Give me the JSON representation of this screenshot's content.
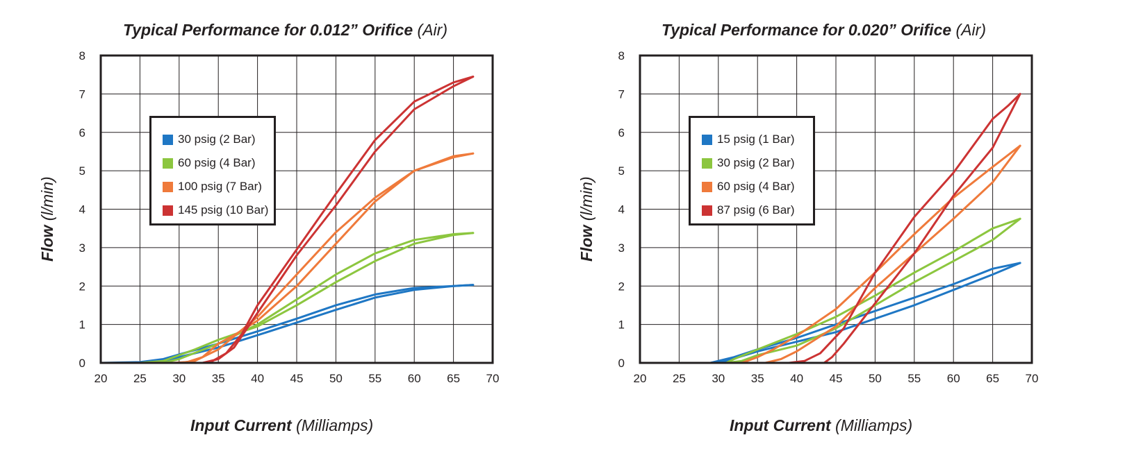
{
  "chart_data": [
    {
      "type": "line",
      "title_main": "Typical Performance for 0.012” Orifice",
      "title_sub": "(Air)",
      "xlabel_main": "Input Current",
      "xlabel_sub": "(Milliamps)",
      "ylabel_main": "Flow",
      "ylabel_sub": "(l/min)",
      "xlim": [
        20,
        70
      ],
      "ylim": [
        0,
        8
      ],
      "xticks": [
        "20",
        "25",
        "30",
        "35",
        "40",
        "45",
        "50",
        "55",
        "60",
        "65",
        "70"
      ],
      "yticks": [
        "0",
        "1",
        "2",
        "3",
        "4",
        "5",
        "6",
        "7",
        "8"
      ],
      "grid": true,
      "legend_position": "upper-left",
      "series": [
        {
          "name": "30 psig (2 Bar)",
          "color": "#1f77c4",
          "up": [
            [
              20,
              0
            ],
            [
              25,
              0
            ],
            [
              28,
              0.05
            ],
            [
              30,
              0.15
            ],
            [
              35,
              0.4
            ],
            [
              40,
              0.72
            ],
            [
              45,
              1.05
            ],
            [
              50,
              1.38
            ],
            [
              55,
              1.7
            ],
            [
              60,
              1.9
            ],
            [
              65,
              2.0
            ],
            [
              67.5,
              2.03
            ]
          ],
          "down": [
            [
              67.5,
              2.03
            ],
            [
              65,
              2.0
            ],
            [
              60,
              1.95
            ],
            [
              55,
              1.78
            ],
            [
              50,
              1.5
            ],
            [
              45,
              1.15
            ],
            [
              40,
              0.82
            ],
            [
              35,
              0.5
            ],
            [
              30,
              0.22
            ],
            [
              28,
              0.1
            ],
            [
              25,
              0.02
            ],
            [
              20,
              0
            ]
          ]
        },
        {
          "name": "60 psig (4 Bar)",
          "color": "#8cc63f",
          "up": [
            [
              20,
              0
            ],
            [
              28,
              0
            ],
            [
              30,
              0.1
            ],
            [
              35,
              0.5
            ],
            [
              40,
              1.0
            ],
            [
              45,
              1.65
            ],
            [
              50,
              2.3
            ],
            [
              55,
              2.85
            ],
            [
              60,
              3.2
            ],
            [
              65,
              3.35
            ],
            [
              67.5,
              3.38
            ]
          ],
          "down": [
            [
              67.5,
              3.38
            ],
            [
              65,
              3.33
            ],
            [
              60,
              3.1
            ],
            [
              55,
              2.65
            ],
            [
              50,
              2.1
            ],
            [
              45,
              1.5
            ],
            [
              40,
              0.95
            ],
            [
              35,
              0.6
            ],
            [
              32,
              0.35
            ],
            [
              30,
              0.2
            ],
            [
              28,
              0.05
            ],
            [
              25,
              0
            ],
            [
              20,
              0
            ]
          ]
        },
        {
          "name": "100 psig (7 Bar)",
          "color": "#ef7a3b",
          "up": [
            [
              20,
              0
            ],
            [
              30,
              0
            ],
            [
              32,
              0.05
            ],
            [
              35,
              0.35
            ],
            [
              40,
              1.2
            ],
            [
              45,
              2.3
            ],
            [
              50,
              3.4
            ],
            [
              55,
              4.3
            ],
            [
              60,
              5.0
            ],
            [
              65,
              5.35
            ],
            [
              67.5,
              5.45
            ]
          ],
          "down": [
            [
              67.5,
              5.45
            ],
            [
              65,
              5.38
            ],
            [
              60,
              5.0
            ],
            [
              55,
              4.2
            ],
            [
              50,
              3.1
            ],
            [
              45,
              2.0
            ],
            [
              40,
              1.1
            ],
            [
              37,
              0.72
            ],
            [
              35,
              0.5
            ],
            [
              33,
              0.15
            ],
            [
              31,
              0.02
            ],
            [
              29,
              0
            ],
            [
              20,
              0
            ]
          ]
        },
        {
          "name": "145 psig (10 Bar)",
          "color": "#cc3333",
          "up": [
            [
              20,
              0
            ],
            [
              33,
              0
            ],
            [
              35,
              0.1
            ],
            [
              37,
              0.4
            ],
            [
              40,
              1.3
            ],
            [
              45,
              2.8
            ],
            [
              50,
              4.1
            ],
            [
              55,
              5.5
            ],
            [
              60,
              6.6
            ],
            [
              65,
              7.2
            ],
            [
              67.5,
              7.45
            ]
          ],
          "down": [
            [
              67.5,
              7.45
            ],
            [
              65,
              7.3
            ],
            [
              60,
              6.8
            ],
            [
              55,
              5.8
            ],
            [
              50,
              4.4
            ],
            [
              45,
              2.95
            ],
            [
              40,
              1.5
            ],
            [
              38,
              0.75
            ],
            [
              36,
              0.25
            ],
            [
              34,
              0.02
            ],
            [
              33,
              0
            ],
            [
              20,
              0
            ]
          ]
        }
      ]
    },
    {
      "type": "line",
      "title_main": "Typical Performance for 0.020” Orifice",
      "title_sub": "(Air)",
      "xlabel_main": "Input Current",
      "xlabel_sub": "(Milliamps)",
      "ylabel_main": "Flow",
      "ylabel_sub": "(l/min)",
      "xlim": [
        20,
        70
      ],
      "ylim": [
        0,
        8
      ],
      "xticks": [
        "20",
        "25",
        "30",
        "35",
        "40",
        "45",
        "50",
        "55",
        "60",
        "65",
        "70"
      ],
      "yticks": [
        "0",
        "1",
        "2",
        "3",
        "4",
        "5",
        "6",
        "7",
        "8"
      ],
      "grid": true,
      "legend_position": "upper-left",
      "series": [
        {
          "name": "15 psig (1 Bar)",
          "color": "#1f77c4",
          "up": [
            [
              20,
              0
            ],
            [
              29,
              0
            ],
            [
              31,
              0.05
            ],
            [
              35,
              0.3
            ],
            [
              40,
              0.55
            ],
            [
              45,
              0.8
            ],
            [
              50,
              1.15
            ],
            [
              55,
              1.5
            ],
            [
              60,
              1.9
            ],
            [
              65,
              2.3
            ],
            [
              68.5,
              2.6
            ]
          ],
          "down": [
            [
              68.5,
              2.6
            ],
            [
              65,
              2.45
            ],
            [
              60,
              2.05
            ],
            [
              55,
              1.7
            ],
            [
              50,
              1.35
            ],
            [
              45,
              1.0
            ],
            [
              40,
              0.65
            ],
            [
              35,
              0.35
            ],
            [
              32,
              0.15
            ],
            [
              30,
              0.05
            ],
            [
              29,
              0
            ],
            [
              20,
              0
            ]
          ]
        },
        {
          "name": "30 psig (2 Bar)",
          "color": "#8cc63f",
          "up": [
            [
              20,
              0
            ],
            [
              31,
              0
            ],
            [
              33,
              0.05
            ],
            [
              35,
              0.2
            ],
            [
              40,
              0.45
            ],
            [
              45,
              0.9
            ],
            [
              50,
              1.5
            ],
            [
              55,
              2.1
            ],
            [
              60,
              2.65
            ],
            [
              65,
              3.2
            ],
            [
              68.5,
              3.75
            ]
          ],
          "down": [
            [
              68.5,
              3.75
            ],
            [
              65,
              3.5
            ],
            [
              60,
              2.9
            ],
            [
              55,
              2.35
            ],
            [
              50,
              1.75
            ],
            [
              45,
              1.2
            ],
            [
              40,
              0.75
            ],
            [
              35,
              0.35
            ],
            [
              32,
              0.1
            ],
            [
              31,
              0
            ],
            [
              20,
              0
            ]
          ]
        },
        {
          "name": "60 psig (4 Bar)",
          "color": "#ef7a3b",
          "up": [
            [
              20,
              0
            ],
            [
              36,
              0
            ],
            [
              38,
              0.1
            ],
            [
              40,
              0.3
            ],
            [
              45,
              0.95
            ],
            [
              50,
              1.95
            ],
            [
              55,
              2.85
            ],
            [
              60,
              3.75
            ],
            [
              65,
              4.7
            ],
            [
              68.5,
              5.65
            ]
          ],
          "down": [
            [
              68.5,
              5.65
            ],
            [
              65,
              5.1
            ],
            [
              60,
              4.3
            ],
            [
              55,
              3.35
            ],
            [
              50,
              2.35
            ],
            [
              45,
              1.4
            ],
            [
              40,
              0.7
            ],
            [
              37,
              0.35
            ],
            [
              35,
              0.15
            ],
            [
              33,
              0
            ],
            [
              20,
              0
            ]
          ]
        },
        {
          "name": "87 psig (6 Bar)",
          "color": "#cc3333",
          "up": [
            [
              20,
              0
            ],
            [
              43.5,
              0
            ],
            [
              44.5,
              0.15
            ],
            [
              46,
              0.5
            ],
            [
              50,
              1.55
            ],
            [
              55,
              2.85
            ],
            [
              60,
              4.35
            ],
            [
              65,
              5.6
            ],
            [
              68.5,
              7.0
            ]
          ],
          "down": [
            [
              68.5,
              7.0
            ],
            [
              67,
              6.7
            ],
            [
              65,
              6.35
            ],
            [
              60,
              4.95
            ],
            [
              55,
              3.8
            ],
            [
              50,
              2.35
            ],
            [
              46,
              0.9
            ],
            [
              43,
              0.25
            ],
            [
              41,
              0.05
            ],
            [
              39,
              0
            ],
            [
              20,
              0
            ]
          ]
        }
      ]
    }
  ]
}
